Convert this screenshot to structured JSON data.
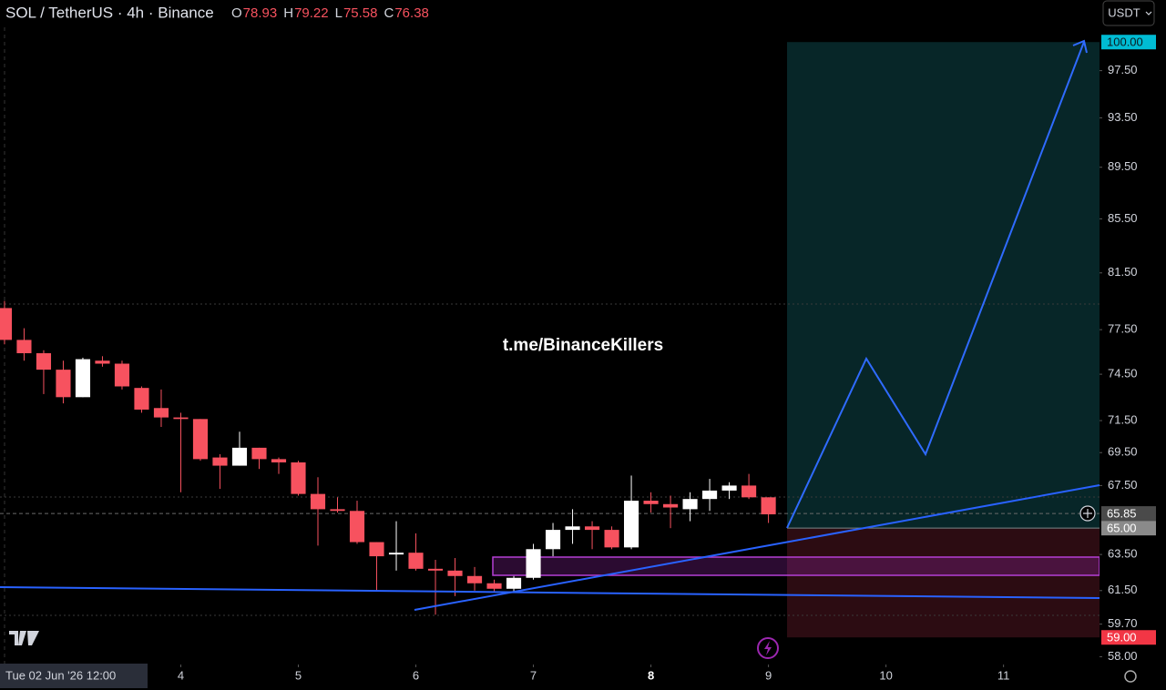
{
  "chart_data": {
    "type": "candlestick",
    "title": "SOL / TetherUS · 4h · Binance",
    "ohlc_header": [
      {
        "key": "O",
        "value": 78.93
      },
      {
        "key": "H",
        "value": 79.22
      },
      {
        "key": "L",
        "value": 75.58
      },
      {
        "key": "C",
        "value": 76.38
      }
    ],
    "currency_button": "USDT",
    "watermark": "t.me/BinanceKillers",
    "crosshair_label": "Tue 02 Jun '26 12:00",
    "log_scale": true,
    "up_color": "#ffffff",
    "down_color": "#f7525f",
    "open": [
      79.0,
      76.8,
      75.9,
      74.8,
      73.0,
      75.4,
      75.2,
      73.6,
      72.3,
      71.7,
      71.6,
      69.2,
      68.7,
      69.8,
      69.1,
      68.9,
      67.0,
      66.1,
      66.0,
      64.2,
      63.5,
      63.6,
      62.7,
      62.6,
      62.3,
      61.9,
      61.6,
      62.2,
      63.8,
      64.9,
      65.1,
      64.9,
      63.9,
      66.6,
      66.4,
      66.1,
      66.7,
      67.2,
      67.5,
      66.8
    ],
    "high": [
      79.5,
      77.6,
      76.1,
      75.4,
      75.6,
      75.7,
      75.4,
      73.7,
      73.5,
      72.0,
      71.6,
      69.4,
      70.8,
      69.8,
      69.2,
      69.0,
      68.0,
      66.8,
      66.6,
      64.2,
      65.4,
      64.7,
      63.2,
      63.3,
      62.8,
      62.1,
      62.3,
      64.1,
      65.3,
      66.1,
      65.4,
      65.1,
      68.1,
      67.1,
      66.9,
      67.1,
      67.9,
      67.7,
      68.2,
      66.8
    ],
    "low": [
      76.5,
      75.4,
      73.2,
      72.6,
      73.0,
      75.0,
      73.5,
      72.0,
      71.1,
      67.1,
      69.0,
      67.3,
      68.7,
      68.5,
      68.2,
      66.9,
      64.0,
      65.9,
      64.1,
      61.5,
      62.6,
      62.6,
      60.2,
      61.2,
      61.5,
      61.4,
      61.4,
      62.1,
      63.4,
      64.1,
      63.8,
      63.8,
      63.8,
      65.9,
      65.0,
      65.4,
      66.0,
      66.7,
      66.7,
      65.3
    ],
    "close": [
      76.8,
      75.9,
      74.8,
      73.0,
      75.5,
      75.2,
      73.7,
      72.2,
      71.7,
      71.6,
      69.1,
      68.7,
      69.8,
      69.1,
      68.9,
      67.0,
      66.1,
      66.0,
      64.2,
      63.4,
      63.6,
      62.7,
      62.6,
      62.3,
      61.9,
      61.6,
      62.2,
      63.8,
      64.9,
      65.1,
      64.9,
      63.9,
      66.6,
      66.4,
      66.2,
      66.7,
      67.2,
      67.5,
      66.8,
      65.8
    ],
    "xlim": [
      -0.23,
      55.9
    ],
    "xticks": [
      {
        "value": 9,
        "label": "4"
      },
      {
        "value": 15,
        "label": "5"
      },
      {
        "value": 21,
        "label": "6"
      },
      {
        "value": 27,
        "label": "7"
      },
      {
        "value": 33,
        "label": "8"
      },
      {
        "value": 39,
        "label": "9"
      },
      {
        "value": 45,
        "label": "10"
      },
      {
        "value": 51,
        "label": "11"
      }
    ],
    "ylim": [
      57.6,
      103.8
    ],
    "yticks": [
      {
        "value": 97.5,
        "label": "97.50"
      },
      {
        "value": 93.5,
        "label": "93.50"
      },
      {
        "value": 89.5,
        "label": "89.50"
      },
      {
        "value": 85.5,
        "label": "85.50"
      },
      {
        "value": 81.5,
        "label": "81.50"
      },
      {
        "value": 77.5,
        "label": "77.50"
      },
      {
        "value": 74.5,
        "label": "74.50"
      },
      {
        "value": 71.5,
        "label": "71.50"
      },
      {
        "value": 69.5,
        "label": "69.50"
      },
      {
        "value": 67.5,
        "label": "67.50"
      },
      {
        "value": 63.5,
        "label": "63.50"
      },
      {
        "value": 61.5,
        "label": "61.50"
      },
      {
        "value": 59.7,
        "label": "59.70"
      },
      {
        "value": 58,
        "label": "58.00"
      }
    ],
    "price_labels": [
      {
        "value": 100,
        "label": "100.00",
        "color": "#00bcd4"
      },
      {
        "value": 65.85,
        "label": "65.85",
        "color": "#4a4a4a"
      },
      {
        "value": 65,
        "label": "65.00",
        "color": "#8a8a8a"
      },
      {
        "value": 59,
        "label": "59.00",
        "color": "#f23645"
      }
    ]
  }
}
